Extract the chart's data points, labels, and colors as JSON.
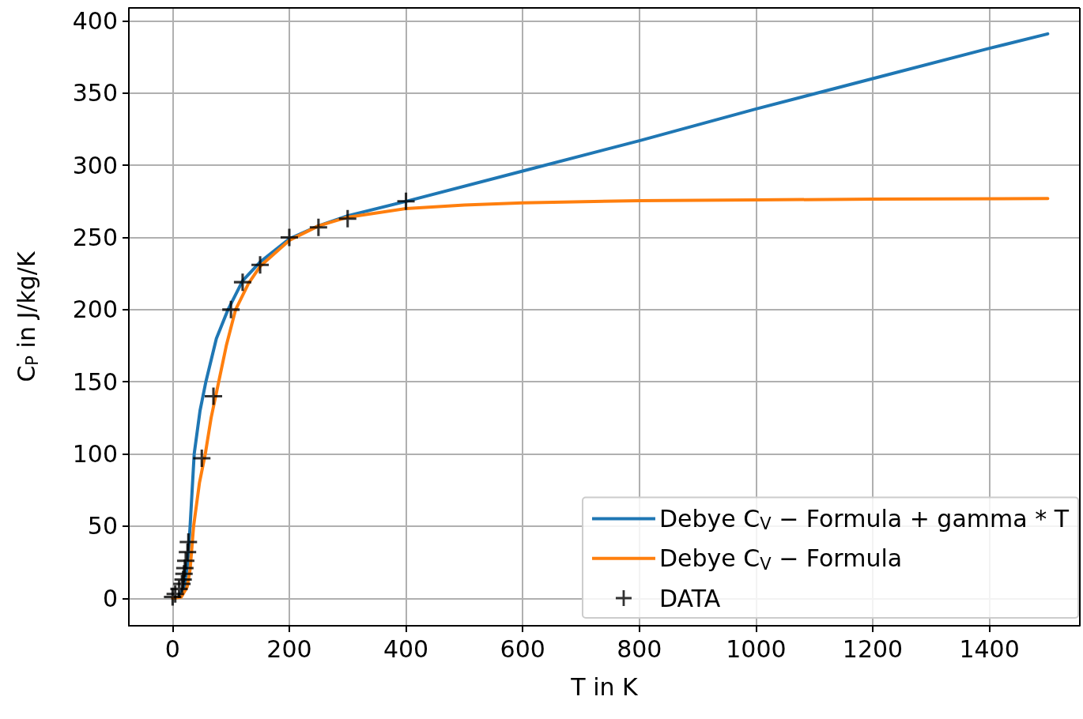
{
  "chart_data": {
    "type": "line",
    "xlabel": "T in K",
    "ylabel": "C$_{P}$ in J/kg/K",
    "xlim": [
      -75,
      1555
    ],
    "ylim": [
      -19,
      409
    ],
    "xticks": [
      0,
      200,
      400,
      600,
      800,
      1000,
      1200,
      1400
    ],
    "yticks": [
      0,
      50,
      100,
      150,
      200,
      250,
      300,
      350,
      400
    ],
    "grid": true,
    "legend": "bottom right",
    "series": [
      {
        "name": "Debye C$_{V}$ − Formula + gamma * T",
        "color": "#1f77b4",
        "marker": "none",
        "line_style": "solid",
        "x": [
          0,
          10,
          20,
          26,
          30,
          37,
          47,
          57,
          75,
          95,
          120,
          150,
          200,
          250,
          300,
          400,
          600,
          800,
          1000,
          1200,
          1400,
          1500
        ],
        "values": [
          0,
          1,
          8,
          25,
          50,
          100,
          130,
          150,
          180,
          200,
          220,
          233,
          249,
          258,
          265,
          275,
          296,
          317,
          339,
          360,
          381,
          391
        ]
      },
      {
        "name": "Debye C$_{V}$ − Formula",
        "color": "#ff7f0e",
        "marker": "none",
        "line_style": "solid",
        "x": [
          0,
          15,
          25,
          30,
          36,
          46,
          56,
          66,
          79,
          92,
          108,
          130,
          150,
          200,
          250,
          300,
          400,
          500,
          600,
          800,
          1000,
          1200,
          1500
        ],
        "values": [
          0,
          1,
          8,
          20,
          50,
          80,
          100,
          125,
          150,
          175,
          200,
          218,
          230,
          248,
          258,
          264,
          270,
          272.5,
          274,
          275.5,
          276,
          276.5,
          277
        ]
      },
      {
        "name": "DATA",
        "type": "scatter",
        "color": "#000000",
        "marker": "cross",
        "x": [
          0,
          4.5,
          11,
          16,
          18,
          19.5,
          21,
          22.5,
          25.5,
          27,
          50,
          70,
          100,
          120,
          150,
          200,
          250,
          300,
          400
        ],
        "values": [
          1,
          3,
          6.5,
          10,
          13,
          17,
          21,
          26,
          32,
          39,
          97,
          140,
          200,
          219,
          231,
          250,
          257,
          263,
          275
        ]
      }
    ]
  }
}
